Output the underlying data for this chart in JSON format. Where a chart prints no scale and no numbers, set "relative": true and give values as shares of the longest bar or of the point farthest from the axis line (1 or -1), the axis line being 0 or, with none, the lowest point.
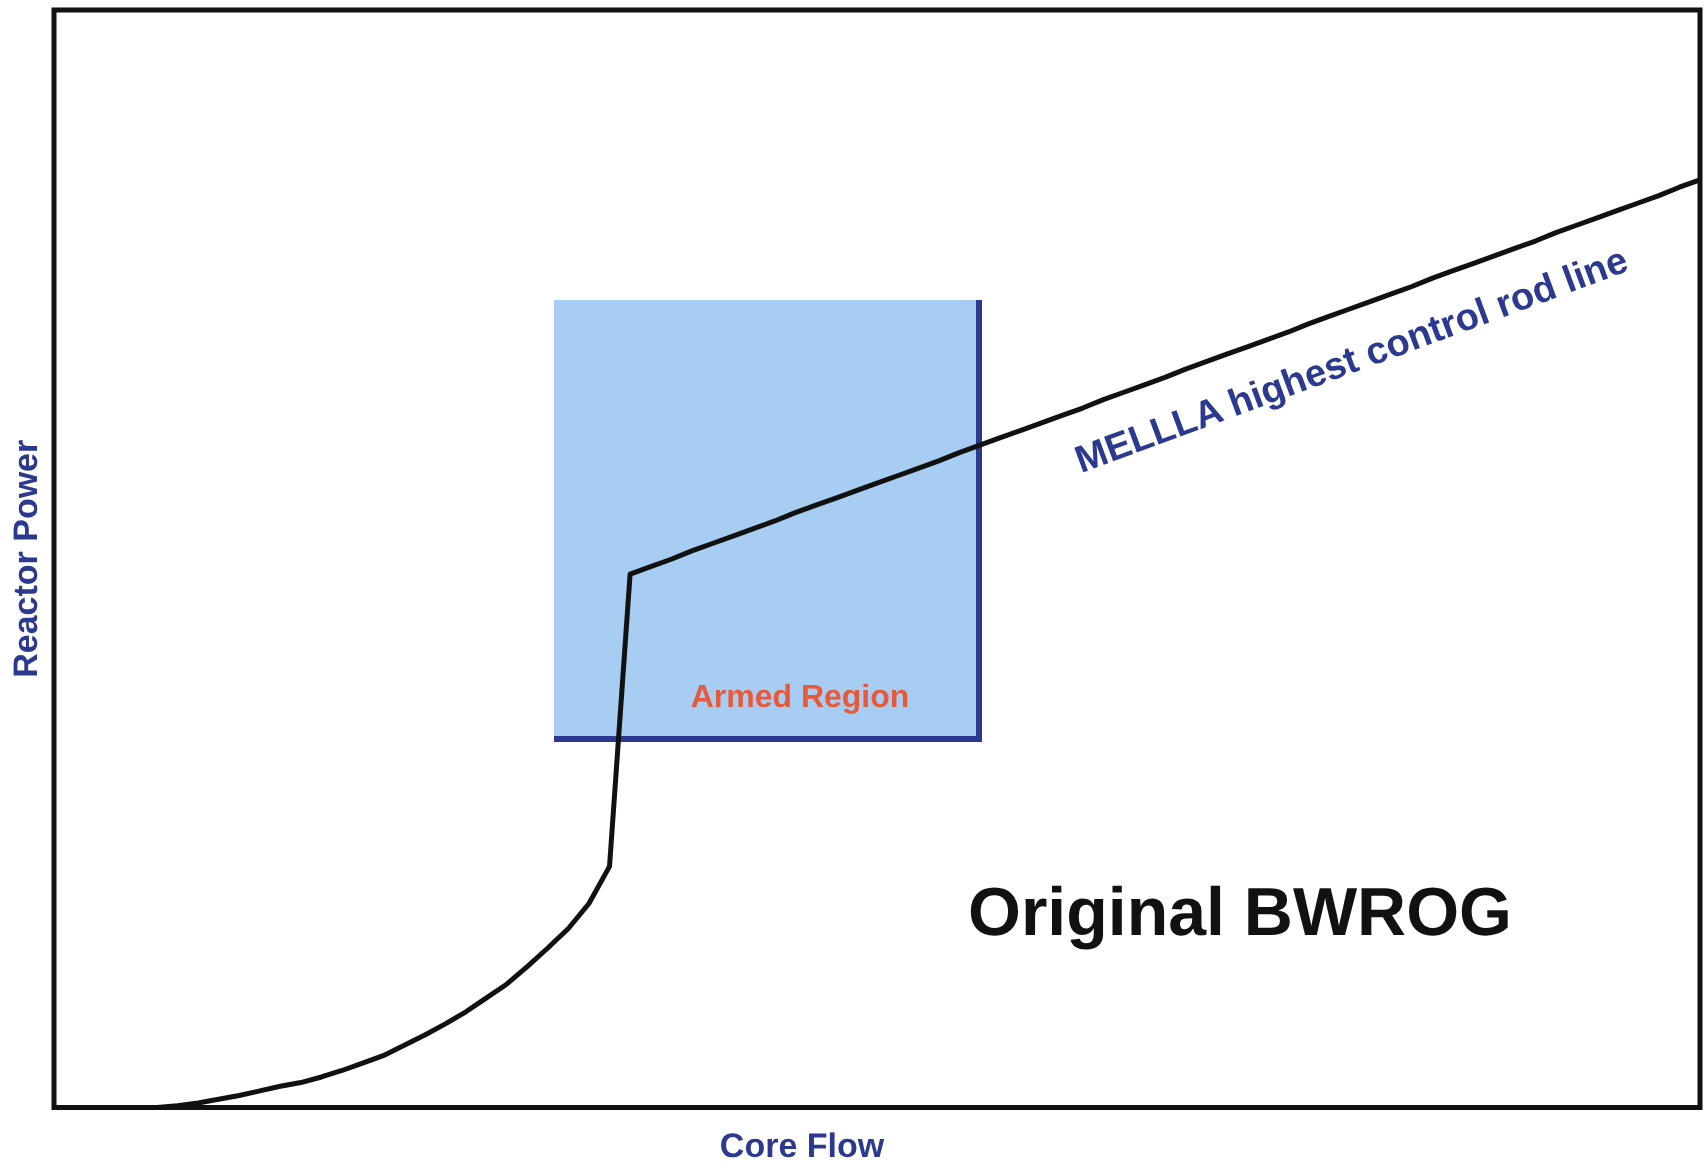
{
  "chart_data": {
    "type": "line",
    "relative": true,
    "xlabel": "Core Flow",
    "ylabel": "Reactor Power",
    "grid": false,
    "legend": false,
    "marker": "none",
    "line_style": "solid",
    "categories": [
      null,
      null,
      null,
      null,
      null,
      null,
      null,
      null,
      null,
      null,
      null,
      null,
      null,
      null,
      null,
      null,
      null,
      null,
      null,
      null,
      null,
      null,
      null,
      null,
      null,
      null,
      null,
      null,
      null,
      null,
      null,
      null,
      null,
      null,
      null,
      null,
      null,
      null,
      null,
      null,
      null,
      null,
      null,
      null,
      null,
      null,
      null,
      null,
      null,
      null,
      null,
      null,
      null,
      null,
      null,
      null,
      null,
      null,
      null,
      null,
      null,
      null,
      null,
      null,
      null,
      null,
      null,
      null,
      null,
      null,
      null,
      null,
      null,
      null,
      null,
      null,
      null,
      null,
      null,
      null,
      null
    ],
    "series": [
      {
        "color": "#111111",
        "values": [
          null,
          null,
          null,
          null,
          null,
          0,
          0.002,
          0.005,
          0.009,
          0.013,
          0.018,
          0.023,
          0.027,
          0.033,
          0.04,
          0.048,
          0.056,
          0.067,
          0.078,
          0.09,
          0.103,
          0.118,
          0.133,
          0.152,
          0.172,
          0.193,
          0.22,
          0.26,
          0.575,
          0.583,
          0.591,
          0.6,
          0.608,
          0.616,
          0.624,
          0.632,
          0.641,
          0.649,
          0.657,
          0.665,
          0.673,
          0.681,
          0.689,
          0.697,
          0.706,
          0.714,
          0.722,
          0.73,
          0.738,
          0.746,
          0.754,
          0.763,
          0.771,
          0.779,
          0.787,
          0.796,
          0.804,
          0.812,
          0.82,
          0.828,
          0.836,
          0.845,
          0.853,
          0.861,
          0.869,
          0.877,
          0.885,
          0.894,
          0.902,
          0.91,
          0.918,
          0.926,
          0.934,
          0.943,
          0.951,
          0.959,
          0.967,
          0.975,
          0.983,
          0.992,
          1
        ]
      }
    ],
    "annotations": [
      "MELLLA highest control rod line",
      "Armed Region",
      "Original BWROG"
    ]
  }
}
